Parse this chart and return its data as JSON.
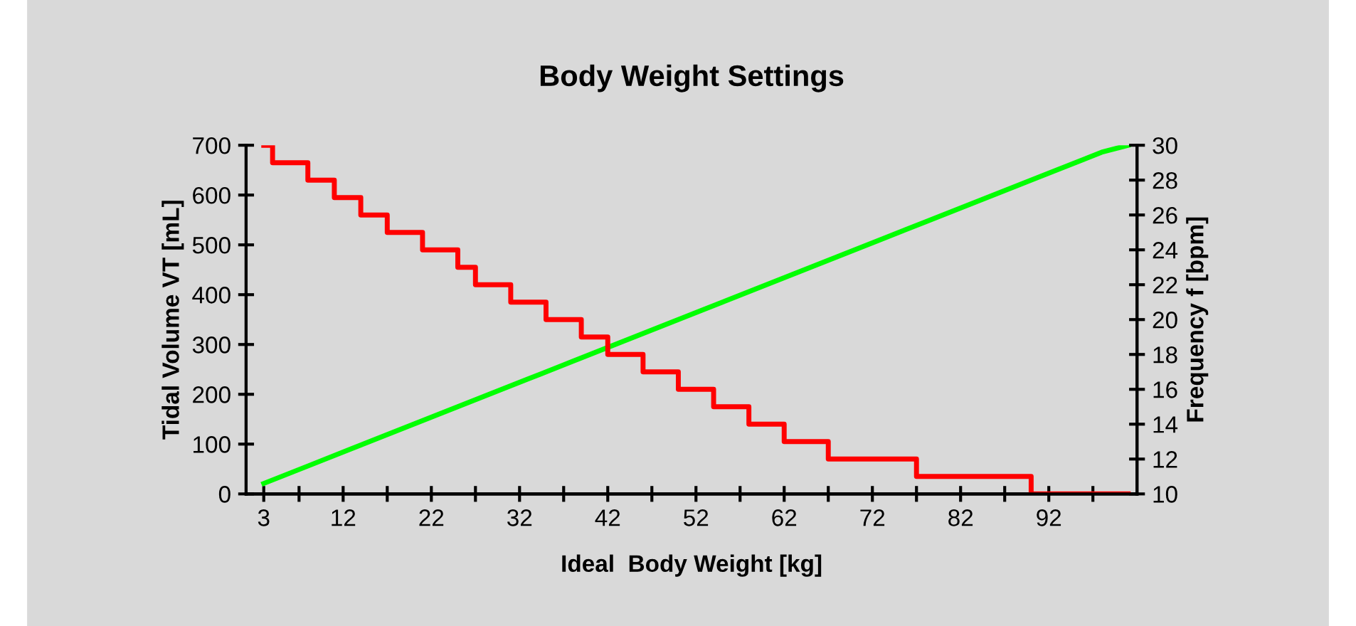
{
  "chart_data": {
    "type": "line",
    "title": "Body Weight Settings",
    "xlabel": "Ideal  Body Weight [kg]",
    "ylabel": "Tidal Volume VT [mL]",
    "y2label": "Frequency f [bpm]",
    "xlim": [
      1,
      102
    ],
    "xticks": [
      3,
      {
        "value": 7,
        "label": null
      },
      12,
      {
        "value": 17,
        "label": null
      },
      22,
      {
        "value": 27,
        "label": null
      },
      32,
      {
        "value": 37,
        "label": null
      },
      42,
      {
        "value": 47,
        "label": null
      },
      52,
      {
        "value": 57,
        "label": null
      },
      62,
      {
        "value": 67,
        "label": null
      },
      72,
      {
        "value": 77,
        "label": null
      },
      82,
      {
        "value": 87,
        "label": null
      },
      92,
      {
        "value": 97,
        "label": null
      }
    ],
    "ylim": [
      0,
      700
    ],
    "yticks": [
      0,
      100,
      200,
      300,
      400,
      500,
      600,
      700
    ],
    "y2lim": [
      10,
      30
    ],
    "y2ticks": [
      10,
      12,
      14,
      16,
      18,
      20,
      22,
      24,
      26,
      28,
      30
    ],
    "grid": false,
    "marker": "none",
    "line_style": "solid",
    "series": [
      {
        "color": "#00ff00",
        "x": [
          3,
          8,
          13,
          18,
          23,
          28,
          33,
          38,
          43,
          48,
          53,
          58,
          63,
          68,
          73,
          78,
          83,
          88,
          93,
          98,
          101
        ],
        "values": [
          21,
          56,
          91,
          126,
          161,
          196,
          231,
          266,
          301,
          336,
          371,
          406,
          441,
          476,
          511,
          546,
          581,
          616,
          651,
          686,
          700
        ]
      },
      {
        "type": "step",
        "axis": "y2",
        "color": "#ff0000",
        "x": [
          3,
          4,
          8,
          11,
          14,
          17,
          21,
          25,
          27,
          31,
          35,
          39,
          42,
          46,
          50,
          54,
          58,
          62,
          67,
          77,
          90,
          101
        ],
        "values": [
          30,
          29,
          28,
          27,
          26,
          25,
          24,
          23,
          22,
          21,
          20,
          19,
          18,
          17,
          16,
          15,
          14,
          13,
          12,
          11,
          10,
          10
        ]
      }
    ]
  }
}
